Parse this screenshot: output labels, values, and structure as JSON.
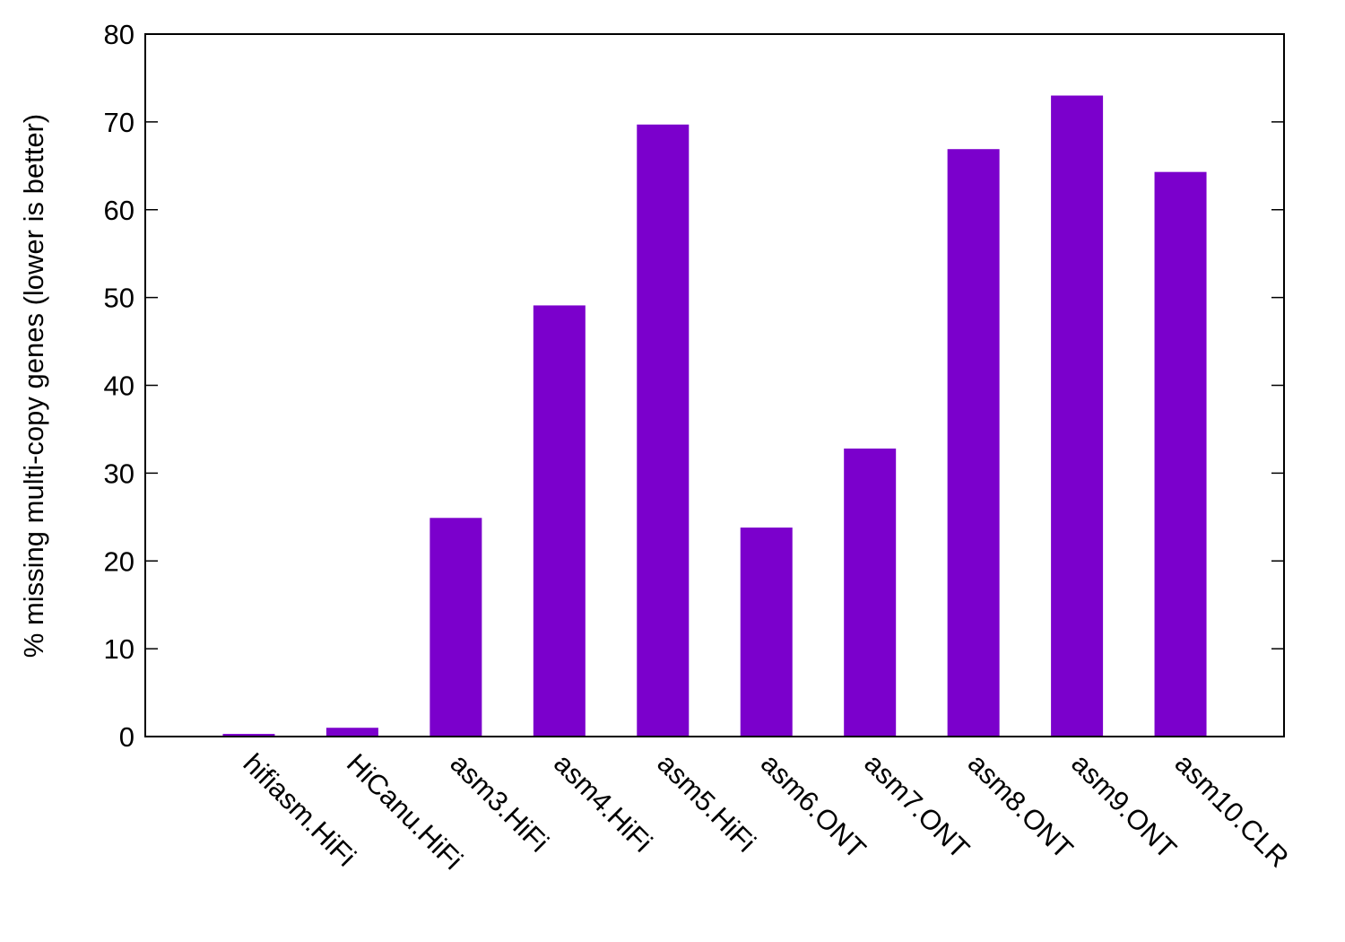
{
  "chart_data": {
    "type": "bar",
    "y_label": "% missing multi-copy genes (lower is better)",
    "categories": [
      "hifiasm.HiFi",
      "HiCanu.HiFi",
      "asm3.HiFi",
      "asm4.HiFi",
      "asm5.HiFi",
      "asm6.ONT",
      "asm7.ONT",
      "asm8.ONT",
      "asm9.ONT",
      "asm10.CLR"
    ],
    "values": [
      0.3,
      1.0,
      24.9,
      49.1,
      69.7,
      23.8,
      32.8,
      66.9,
      73.0,
      64.3
    ],
    "color": "#7b00cc",
    "ylim": [
      0,
      80
    ],
    "yticks": [
      0,
      10,
      20,
      30,
      40,
      50,
      60,
      70,
      80
    ],
    "grid": false
  }
}
